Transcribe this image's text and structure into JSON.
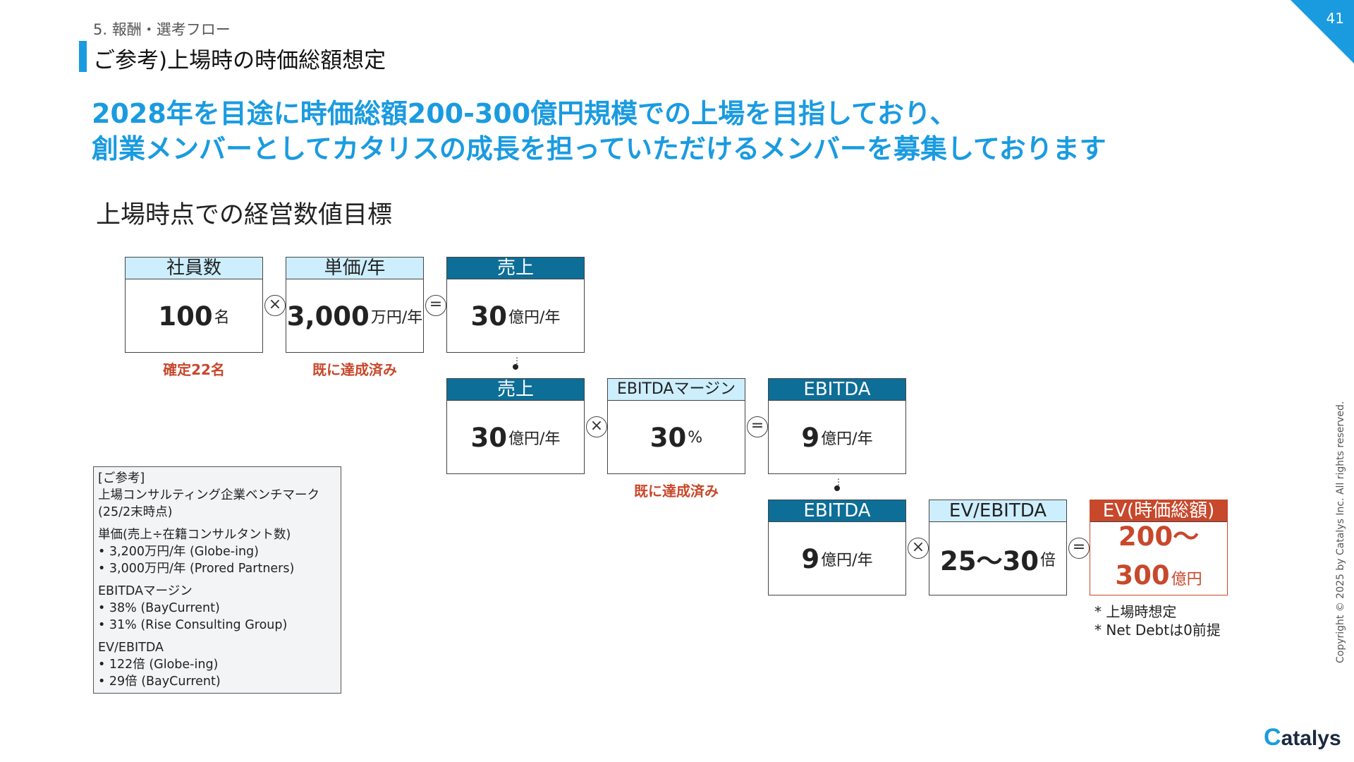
{
  "header": {
    "section_label": "5. 報酬・選考フロー",
    "page_title": "ご参考)上場時の時価総額想定",
    "page_number": "41"
  },
  "headline": {
    "line1": "2028年を目途に時価総額200-300億円規模での上場を目指しており、",
    "line2": "創業メンバーとしてカタリスの成長を担っていただけるメンバーを募集しております"
  },
  "subheading": "上場時点での経営数値目標",
  "rows": [
    {
      "boxes": [
        {
          "title": "社員数",
          "value": "100",
          "unit": "名",
          "note": "確定22名"
        },
        {
          "title": "単価/年",
          "value": "3,000",
          "unit": "万円/年",
          "note": "既に達成済み"
        },
        {
          "title": "売上",
          "value": "30",
          "unit": "億円/年"
        }
      ],
      "ops": [
        "×",
        "="
      ]
    },
    {
      "boxes": [
        {
          "title": "売上",
          "value": "30",
          "unit": "億円/年"
        },
        {
          "title": "EBITDAマージン",
          "value": "30",
          "unit": "%",
          "note": "既に達成済み"
        },
        {
          "title": "EBITDA",
          "value": "9",
          "unit": "億円/年"
        }
      ],
      "ops": [
        "×",
        "="
      ]
    },
    {
      "boxes": [
        {
          "title": "EBITDA",
          "value": "9",
          "unit": "億円/年"
        },
        {
          "title": "EV/EBITDA",
          "value": "25～30",
          "unit": "倍"
        },
        {
          "title": "EV(時価総額)",
          "value_line1": "200～",
          "value_line2": "300",
          "unit": "億円"
        }
      ],
      "ops": [
        "×",
        "="
      ]
    }
  ],
  "footnotes": [
    "* 上場時想定",
    "* Net Debtは0前提"
  ],
  "reference": {
    "title": "[ご参考]",
    "subtitle": "上場コンサルティング企業ベンチマーク",
    "date": "(25/2末時点)",
    "groups": [
      {
        "label": "単価(売上÷在籍コンサルタント数)",
        "items": [
          "• 3,200万円/年 (Globe-ing)",
          "• 3,000万円/年 (Prored Partners)"
        ]
      },
      {
        "label": "EBITDAマージン",
        "items": [
          "• 38% (BayCurrent)",
          "• 31% (Rise Consulting Group)"
        ]
      },
      {
        "label": "EV/EBITDA",
        "items": [
          "• 122倍 (Globe-ing)",
          "• 29倍 (BayCurrent)"
        ]
      }
    ]
  },
  "copyright": "Copyright © 2025 by Catalys Inc. All rights reserved.",
  "logo": {
    "mark": "C",
    "text": "atalys"
  },
  "colors": {
    "accent": "#1a9be0",
    "dark_header": "#0d6e98",
    "light_header": "#cdeefc",
    "result": "#c8482c"
  }
}
